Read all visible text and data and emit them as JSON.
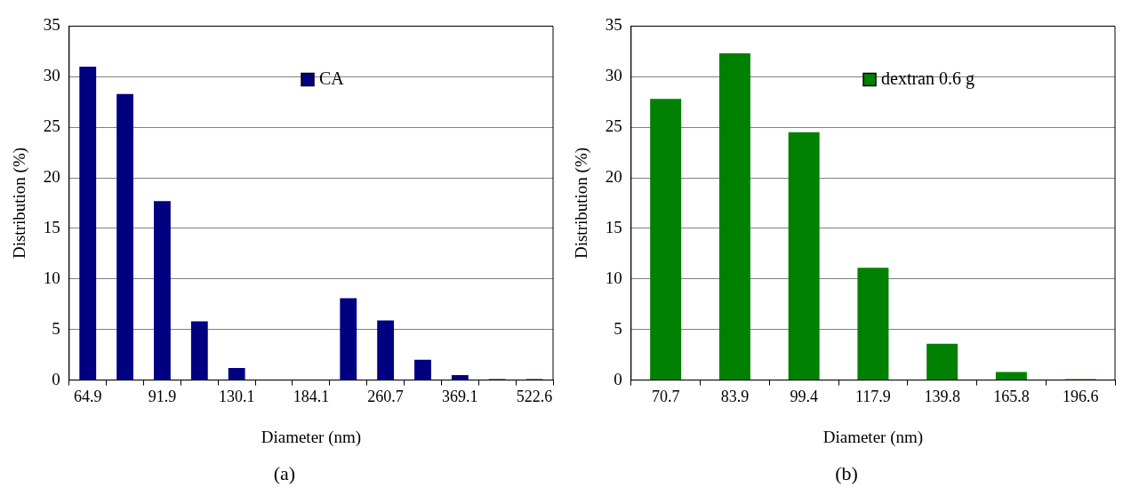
{
  "chart_data": [
    {
      "type": "bar",
      "xlabel": "Diameter (nm)",
      "ylabel": "Distribution (%)",
      "categories": [
        "64.9",
        null,
        "91.9",
        null,
        "130.1",
        null,
        "184.1",
        null,
        "260.7",
        null,
        "369.1",
        null,
        "522.6"
      ],
      "series": [
        {
          "name": "CA",
          "color": "#000080",
          "values": [
            31.0,
            28.3,
            17.7,
            5.8,
            1.2,
            0,
            0,
            8.1,
            5.9,
            2.0,
            0.5,
            0.1,
            0.1
          ]
        }
      ],
      "ylim": [
        0,
        35
      ],
      "yticks": [
        0,
        5,
        10,
        15,
        20,
        25,
        30,
        35
      ],
      "grid": "y",
      "legend": "top",
      "annotations": [
        "(a)"
      ]
    },
    {
      "type": "bar",
      "xlabel": "Diameter (nm)",
      "ylabel": "Distribution (%)",
      "categories": [
        "70.7",
        "83.9",
        "99.4",
        "117.9",
        "139.8",
        "165.8",
        "196.6"
      ],
      "series": [
        {
          "name": "dextran 0.6 g",
          "color": "#008000",
          "values": [
            27.8,
            32.3,
            24.5,
            11.1,
            3.6,
            0.8,
            0.1
          ]
        }
      ],
      "ylim": [
        0,
        35
      ],
      "yticks": [
        0,
        5,
        10,
        15,
        20,
        25,
        30,
        35
      ],
      "grid": "y",
      "legend": "top",
      "annotations": [
        "(b)"
      ]
    }
  ]
}
